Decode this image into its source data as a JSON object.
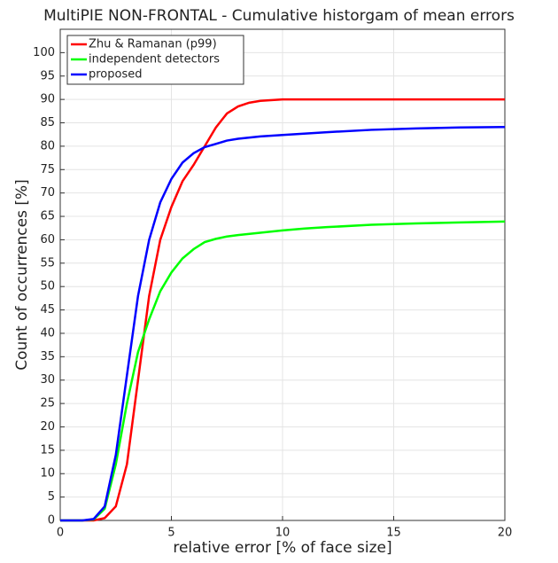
{
  "chart_data": {
    "type": "line",
    "title": "MultiPIE NON-FRONTAL - Cumulative historgam of mean errors",
    "xlabel": "relative error [% of face size]",
    "ylabel": "Count of occurrences [%]",
    "xlim": [
      0,
      20
    ],
    "xticks": [
      0,
      5,
      10,
      15,
      20
    ],
    "ylim": [
      0,
      105
    ],
    "yticks": [
      0,
      5,
      10,
      15,
      20,
      25,
      30,
      35,
      40,
      45,
      50,
      55,
      60,
      65,
      70,
      75,
      80,
      85,
      90,
      95,
      100
    ],
    "grid": true,
    "legend": "upper left",
    "series": [
      {
        "name": "Zhu & Ramanan (p99)",
        "color": "#ff0000",
        "x": [
          0,
          1,
          1.5,
          2,
          2.5,
          3,
          3.5,
          4,
          4.5,
          5,
          5.5,
          6,
          6.5,
          7,
          7.5,
          8,
          8.5,
          9,
          10,
          11,
          20
        ],
        "values": [
          0,
          0,
          0,
          0.5,
          3,
          12,
          30,
          48,
          60,
          67,
          72.5,
          76,
          80,
          84,
          87,
          88.5,
          89.3,
          89.7,
          90,
          90,
          90
        ]
      },
      {
        "name": "independent detectors",
        "color": "#00ff00",
        "x": [
          0,
          1,
          1.5,
          2,
          2.5,
          3,
          3.5,
          4,
          4.5,
          5,
          5.5,
          6,
          6.5,
          7,
          7.5,
          8,
          9,
          10,
          11,
          12,
          14,
          16,
          18,
          20
        ],
        "values": [
          0,
          0,
          0.2,
          2.5,
          12,
          25,
          36,
          43,
          49,
          53,
          56,
          58,
          59.5,
          60.2,
          60.7,
          61,
          61.5,
          62,
          62.4,
          62.7,
          63.2,
          63.5,
          63.7,
          63.9
        ]
      },
      {
        "name": "proposed",
        "color": "#0000ff",
        "x": [
          0,
          1,
          1.5,
          2,
          2.5,
          3,
          3.5,
          4,
          4.5,
          5,
          5.5,
          6,
          6.5,
          7,
          7.5,
          8,
          9,
          10,
          12,
          14,
          16,
          18,
          20
        ],
        "values": [
          0,
          0,
          0.3,
          3,
          14,
          31,
          48,
          60,
          68,
          73,
          76.5,
          78.5,
          79.8,
          80.5,
          81.2,
          81.6,
          82.1,
          82.4,
          83,
          83.5,
          83.8,
          84,
          84.1
        ]
      }
    ]
  }
}
